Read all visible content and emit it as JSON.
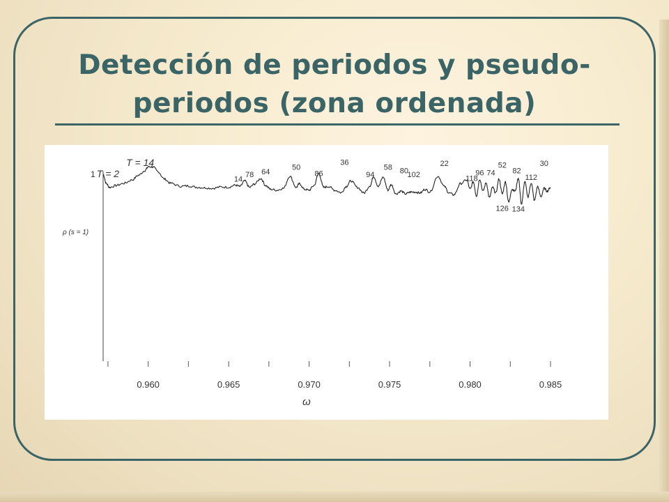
{
  "slide": {
    "title_line1": "Detección de periodos y pseudo-",
    "title_line2": "periodos (zona ordenada)"
  },
  "colors": {
    "accent": "#3a6466",
    "background": "#f8ecd0"
  },
  "chart_data": {
    "type": "line",
    "title": "",
    "xlabel": "ω",
    "ylabel": "ρ (s = 1)",
    "xlim": [
      0.9572,
      0.985
    ],
    "ylim": [
      0,
      1
    ],
    "x_ticks": [
      0.96,
      0.965,
      0.97,
      0.975,
      0.98,
      0.985
    ],
    "x_tick_labels": [
      "0.960",
      "0.965",
      "0.970",
      "0.975",
      "0.980",
      "0.985"
    ],
    "y_tick_labels": [
      "1"
    ],
    "series": [
      {
        "x": [
          0.9572,
          0.9574,
          0.9576,
          0.958,
          0.9585,
          0.959,
          0.9594,
          0.9598,
          0.96,
          0.9603,
          0.9606,
          0.961,
          0.9614,
          0.962,
          0.9625,
          0.963,
          0.9635,
          0.964,
          0.9645,
          0.965,
          0.9654,
          0.9657,
          0.966,
          0.9663,
          0.9666,
          0.967,
          0.9673,
          0.9676,
          0.968,
          0.9684,
          0.9688,
          0.9692,
          0.9694,
          0.9697,
          0.97,
          0.9703,
          0.9706,
          0.9709,
          0.9712,
          0.9716,
          0.972,
          0.9723,
          0.9726,
          0.973,
          0.9734,
          0.9738,
          0.974,
          0.9743,
          0.9746,
          0.9749,
          0.9751,
          0.9754,
          0.9757,
          0.976,
          0.9763,
          0.9766,
          0.9769,
          0.9772,
          0.9775,
          0.978,
          0.9784,
          0.9787,
          0.979,
          0.9794,
          0.9798,
          0.98,
          0.9802,
          0.9804,
          0.9806,
          0.9808,
          0.981,
          0.9812,
          0.9814,
          0.9816,
          0.9818,
          0.982,
          0.9822,
          0.9824,
          0.9826,
          0.9828,
          0.983,
          0.9832,
          0.9834,
          0.9836,
          0.9838,
          0.984,
          0.9842,
          0.9844,
          0.9846,
          0.9848,
          0.985
        ],
        "y": [
          1.0,
          0.95,
          0.93,
          0.94,
          0.952,
          0.97,
          0.995,
          1.02,
          1.04,
          1.04,
          1.015,
          0.975,
          0.952,
          0.936,
          0.938,
          0.931,
          0.928,
          0.925,
          0.932,
          0.931,
          0.942,
          0.935,
          0.965,
          0.93,
          0.948,
          0.978,
          0.94,
          0.92,
          0.915,
          0.925,
          0.99,
          0.93,
          0.95,
          0.92,
          0.915,
          0.94,
          1.005,
          0.93,
          0.935,
          0.915,
          0.902,
          0.935,
          0.965,
          0.93,
          0.9,
          0.94,
          0.99,
          0.935,
          0.985,
          0.915,
          0.945,
          0.895,
          0.91,
          0.895,
          0.905,
          0.905,
          0.9,
          0.92,
          0.905,
          0.99,
          0.935,
          0.9,
          0.89,
          0.95,
          0.97,
          0.92,
          0.96,
          0.885,
          0.975,
          0.91,
          0.955,
          0.875,
          0.93,
          0.9,
          0.975,
          0.895,
          0.96,
          0.85,
          0.92,
          0.91,
          0.98,
          0.84,
          0.96,
          0.88,
          0.955,
          0.86,
          0.935,
          0.88,
          0.925,
          0.91,
          0.93
        ]
      }
    ],
    "annotations": [
      {
        "text": "T = 2",
        "x": 0.9575,
        "y": 0.985
      },
      {
        "text": "T = 14",
        "x": 0.9595,
        "y": 1.045
      },
      {
        "text": "14",
        "x": 0.9656,
        "y": 0.96
      },
      {
        "text": "78",
        "x": 0.9663,
        "y": 0.985
      },
      {
        "text": "64",
        "x": 0.9673,
        "y": 1.0
      },
      {
        "text": "50",
        "x": 0.9692,
        "y": 1.025
      },
      {
        "text": "86",
        "x": 0.9706,
        "y": 0.99
      },
      {
        "text": "36",
        "x": 0.9722,
        "y": 1.05
      },
      {
        "text": "94",
        "x": 0.9738,
        "y": 0.985
      },
      {
        "text": "58",
        "x": 0.9749,
        "y": 1.025
      },
      {
        "text": "80",
        "x": 0.9759,
        "y": 1.005
      },
      {
        "text": "102",
        "x": 0.9765,
        "y": 0.985
      },
      {
        "text": "22",
        "x": 0.9784,
        "y": 1.045
      },
      {
        "text": "118",
        "x": 0.9801,
        "y": 0.965
      },
      {
        "text": "96",
        "x": 0.9806,
        "y": 0.995
      },
      {
        "text": "74",
        "x": 0.9813,
        "y": 0.995
      },
      {
        "text": "52",
        "x": 0.982,
        "y": 1.035
      },
      {
        "text": "82",
        "x": 0.9829,
        "y": 1.005
      },
      {
        "text": "112",
        "x": 0.9838,
        "y": 0.97
      },
      {
        "text": "30",
        "x": 0.9846,
        "y": 1.045
      },
      {
        "text": "126",
        "x": 0.982,
        "y": 0.805
      },
      {
        "text": "134",
        "x": 0.983,
        "y": 0.8
      }
    ],
    "grid": false,
    "legend": "none"
  }
}
